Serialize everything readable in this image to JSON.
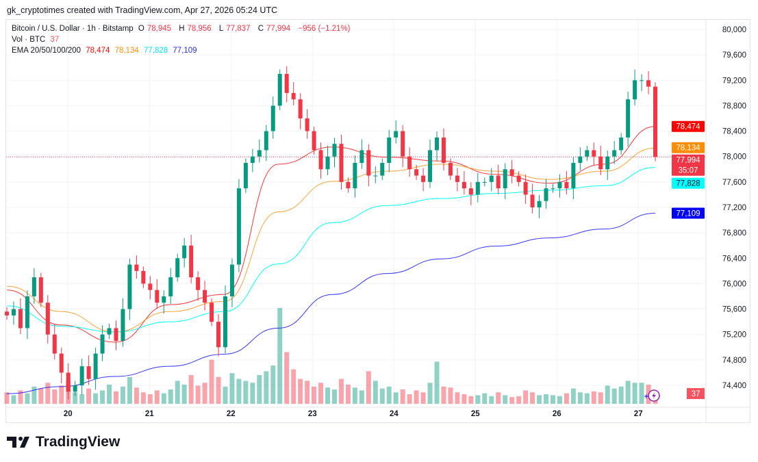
{
  "credit": "gk_cryptotimes created with TradingView.com, Apr 27, 2026 05:24 UTC",
  "legend": {
    "symbol": "Bitcoin / U.S. Dollar · 1h · Bitstamp",
    "o_label": "O",
    "o": "78,945",
    "h_label": "H",
    "h": "78,956",
    "l_label": "L",
    "l": "77,837",
    "c_label": "C",
    "c": "77,994",
    "change": "−956 (−1.21%)",
    "vol_label": "Vol · BTC",
    "vol": "37",
    "ema_label": "EMA 20/50/100/200",
    "ema20": "78,474",
    "ema50": "78,134",
    "ema100": "77,828",
    "ema200": "77,109"
  },
  "colors": {
    "up": "#089981",
    "down": "#f23645",
    "ema20": "#ff0000",
    "ema50": "#ff8c00",
    "ema100": "#00ffff",
    "ema200": "#0000ff",
    "badge_price": "#f23645"
  },
  "badges": {
    "ema20": "78,474",
    "ema50": "78,134",
    "price": "77,994",
    "countdown": "35:07",
    "ema100": "77,828",
    "ema200": "77,109",
    "volume": "37"
  },
  "logo": "TradingView",
  "chart_data": {
    "type": "candlestick",
    "title": "Bitcoin / U.S. Dollar · 1h · Bitstamp",
    "ylim": [
      74100,
      80100
    ],
    "y_ticks": [
      "80,000",
      "79,600",
      "79,200",
      "78,800",
      "78,400",
      "78,000",
      "77,600",
      "77,200",
      "76,800",
      "76,400",
      "76,000",
      "75,600",
      "75,200",
      "74,800",
      "74,400"
    ],
    "y_tick_values": [
      80000,
      79600,
      79200,
      78800,
      78400,
      78000,
      77600,
      77200,
      76800,
      76400,
      76000,
      75600,
      75200,
      74800,
      74400
    ],
    "x_ticks": [
      "20",
      "21",
      "22",
      "23",
      "24",
      "25",
      "26",
      "27"
    ],
    "x_tick_dates": [
      "2026-04-20",
      "2026-04-21",
      "2026-04-22",
      "2026-04-23",
      "2026-04-24",
      "2026-04-25",
      "2026-04-26",
      "2026-04-27"
    ],
    "start": "2026-04-19T06:00Z",
    "end": "2026-04-27T05:00Z",
    "last_price": 77994,
    "closes": [
      75500,
      75600,
      75300,
      75800,
      76100,
      75700,
      75200,
      74900,
      74600,
      74300,
      74400,
      74700,
      74500,
      74900,
      75200,
      75300,
      75100,
      75600,
      76300,
      76200,
      76000,
      75900,
      75700,
      75800,
      76100,
      76400,
      76600,
      76100,
      75900,
      75700,
      75400,
      75000,
      75800,
      76300,
      77500,
      77900,
      78000,
      78100,
      78400,
      78800,
      79300,
      79000,
      78900,
      78600,
      78400,
      78100,
      77800,
      78000,
      78200,
      77600,
      77500,
      77900,
      78100,
      77700,
      77700,
      77900,
      78300,
      78400,
      78000,
      77800,
      77700,
      77600,
      78100,
      78300,
      77900,
      77700,
      77600,
      77500,
      77400,
      77600,
      77600,
      77700,
      77500,
      77800,
      77700,
      77600,
      77400,
      77200,
      77300,
      77500,
      77500,
      77600,
      77500,
      77900,
      78000,
      78100,
      78000,
      77800,
      78000,
      78100,
      78300,
      78900,
      79200,
      79200,
      79100,
      77994
    ],
    "volumes": [
      60,
      45,
      70,
      55,
      90,
      80,
      110,
      75,
      95,
      120,
      60,
      50,
      80,
      55,
      70,
      100,
      65,
      90,
      140,
      85,
      60,
      50,
      70,
      55,
      75,
      120,
      100,
      150,
      95,
      110,
      230,
      140,
      90,
      160,
      130,
      120,
      110,
      150,
      170,
      200,
      500,
      270,
      180,
      130,
      120,
      90,
      110,
      85,
      75,
      130,
      100,
      85,
      70,
      170,
      120,
      80,
      90,
      60,
      75,
      50,
      70,
      60,
      110,
      220,
      90,
      85,
      60,
      50,
      40,
      45,
      55,
      40,
      60,
      45,
      35,
      40,
      70,
      60,
      45,
      50,
      45,
      40,
      55,
      80,
      60,
      55,
      65,
      60,
      95,
      80,
      90,
      120,
      110,
      110,
      100,
      37
    ],
    "series": [
      {
        "name": "EMA 20",
        "times": [
          "2026-04-19T06:00Z",
          "2026-04-19T22:00Z",
          "2026-04-20T14:00Z",
          "2026-04-21T06:00Z",
          "2026-04-21T22:00Z",
          "2026-04-22T14:00Z",
          "2026-04-23T06:00Z",
          "2026-04-23T22:00Z",
          "2026-04-24T14:00Z",
          "2026-04-25T06:00Z",
          "2026-04-25T22:00Z",
          "2026-04-26T14:00Z",
          "2026-04-27T05:00Z"
        ],
        "values": [
          75900,
          75350,
          75080,
          75670,
          75830,
          77880,
          78150,
          77990,
          77930,
          77720,
          77580,
          77880,
          78474
        ]
      },
      {
        "name": "EMA 50",
        "times": [
          "2026-04-19T06:00Z",
          "2026-04-19T22:00Z",
          "2026-04-20T14:00Z",
          "2026-04-21T06:00Z",
          "2026-04-21T22:00Z",
          "2026-04-22T14:00Z",
          "2026-04-23T06:00Z",
          "2026-04-23T22:00Z",
          "2026-04-24T14:00Z",
          "2026-04-25T06:00Z",
          "2026-04-25T22:00Z",
          "2026-04-26T14:00Z",
          "2026-04-27T05:00Z"
        ],
        "values": [
          75960,
          75560,
          75240,
          75560,
          75720,
          77130,
          77610,
          77770,
          77880,
          77770,
          77640,
          77770,
          78134
        ]
      },
      {
        "name": "EMA 100",
        "times": [
          "2026-04-19T06:00Z",
          "2026-04-19T22:00Z",
          "2026-04-20T14:00Z",
          "2026-04-21T06:00Z",
          "2026-04-21T22:00Z",
          "2026-04-22T14:00Z",
          "2026-04-23T06:00Z",
          "2026-04-23T22:00Z",
          "2026-04-24T14:00Z",
          "2026-04-25T06:00Z",
          "2026-04-25T22:00Z",
          "2026-04-26T14:00Z",
          "2026-04-27T05:00Z"
        ],
        "values": [
          75650,
          75330,
          75240,
          75400,
          75560,
          76310,
          76960,
          77230,
          77340,
          77420,
          77470,
          77540,
          77828
        ]
      },
      {
        "name": "EMA 200",
        "times": [
          "2026-04-19T06:00Z",
          "2026-04-19T22:00Z",
          "2026-04-20T14:00Z",
          "2026-04-21T06:00Z",
          "2026-04-21T22:00Z",
          "2026-04-22T14:00Z",
          "2026-04-23T06:00Z",
          "2026-04-23T22:00Z",
          "2026-04-24T14:00Z",
          "2026-04-25T06:00Z",
          "2026-04-25T22:00Z",
          "2026-04-26T14:00Z",
          "2026-04-27T05:00Z"
        ],
        "values": [
          74270,
          74380,
          74540,
          74700,
          74890,
          75300,
          75830,
          76160,
          76390,
          76590,
          76720,
          76860,
          77109
        ]
      }
    ],
    "grid": true,
    "legend_placement": "top-left"
  }
}
